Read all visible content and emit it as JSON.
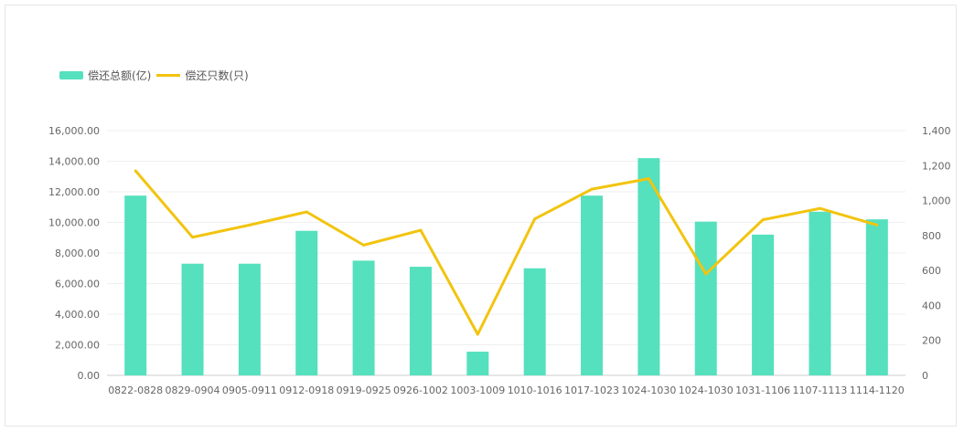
{
  "chart_data": {
    "type": "bar",
    "categories": [
      "0822-0828",
      "0829-0904",
      "0905-0911",
      "0912-0918",
      "0919-0925",
      "0926-1002",
      "1003-1009",
      "1010-1016",
      "1017-1023",
      "1024-1030",
      "1024-1030",
      "1031-1106",
      "1107-1113",
      "1114-1120"
    ],
    "series": [
      {
        "name": "偿还总额(亿)",
        "type": "bar",
        "axis": "left",
        "color": "#55e0be",
        "values": [
          11750,
          7300,
          7300,
          9450,
          7500,
          7100,
          1550,
          7000,
          11750,
          14200,
          10050,
          9200,
          10700,
          10200
        ]
      },
      {
        "name": "偿还只数(只)",
        "type": "line",
        "axis": "right",
        "color": "#f2c40f",
        "values": [
          1170,
          790,
          860,
          935,
          745,
          830,
          235,
          895,
          1065,
          1125,
          580,
          890,
          955,
          860
        ]
      }
    ],
    "y_left": {
      "min": 0,
      "max": 16000,
      "ticks": [
        "0.00",
        "2,000.00",
        "4,000.00",
        "6,000.00",
        "8,000.00",
        "10,000.00",
        "12,000.00",
        "14,000.00",
        "16,000.00"
      ]
    },
    "y_right": {
      "min": 0,
      "max": 1400,
      "ticks": [
        "0",
        "200",
        "400",
        "600",
        "800",
        "1,000",
        "1,200",
        "1,400"
      ]
    },
    "grid": true,
    "legend": "top-left"
  }
}
